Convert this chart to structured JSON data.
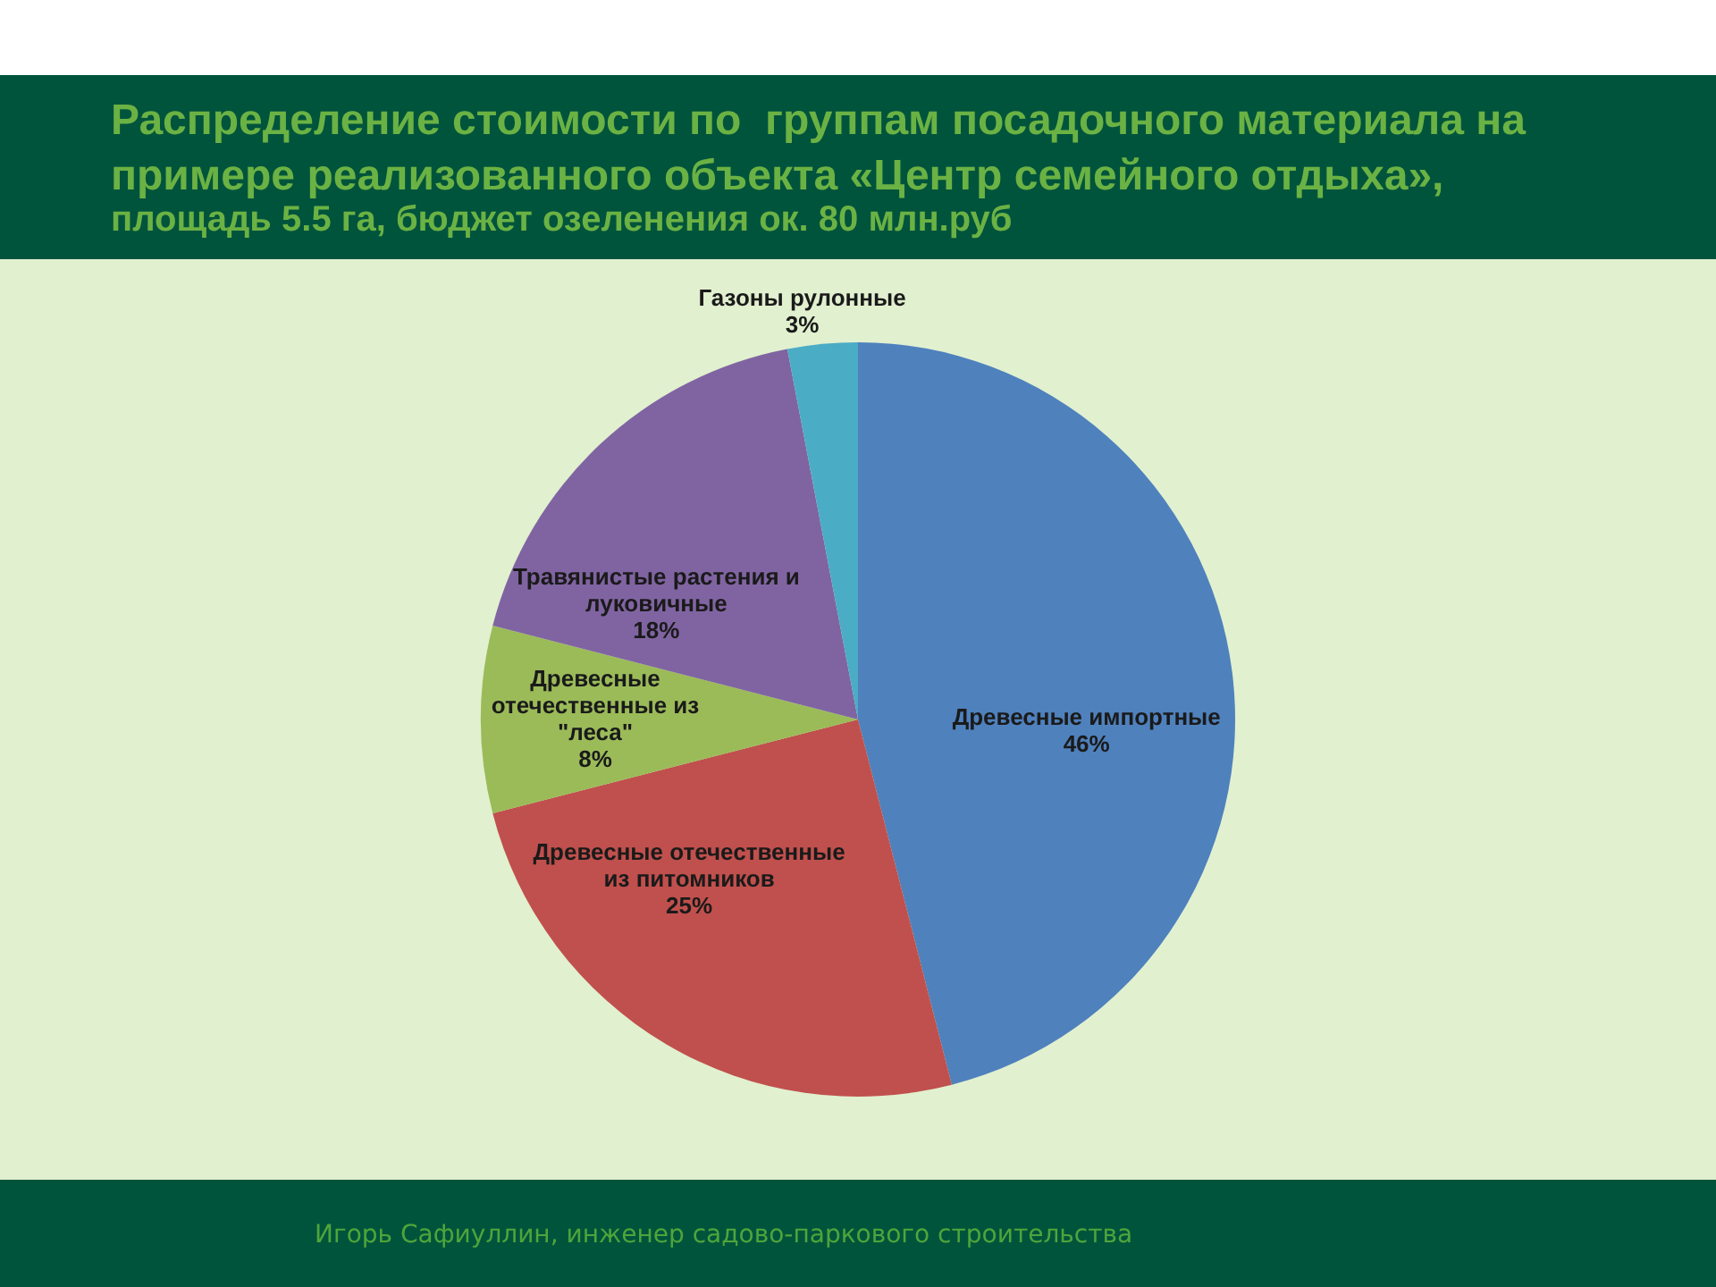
{
  "chart_data": {
    "type": "pie",
    "title": "Распределение стоимости по  группам посадочного материала на примере реализованного объекта «Центр семейного отдыха»,",
    "subtitle": "площадь 5.5 га, бюджет озеленения ок. 80 млн.руб",
    "categories": [
      "Древесные импортные",
      "Древесные отечественные из питомников",
      "Древесные отечественные из \"леса\"",
      "Травянистые растения и луковичные",
      "Газоны рулонные"
    ],
    "values": [
      46,
      25,
      8,
      18,
      3
    ],
    "colors": [
      "#4f81bd",
      "#c0504d",
      "#9bbb59",
      "#8064a2",
      "#4bacc6"
    ],
    "value_labels": [
      "46%",
      "25%",
      "8%",
      "18%",
      "3%"
    ],
    "annotations": [
      "Игорь Сафиуллин, инженер садово-паркового строительства"
    ]
  }
}
